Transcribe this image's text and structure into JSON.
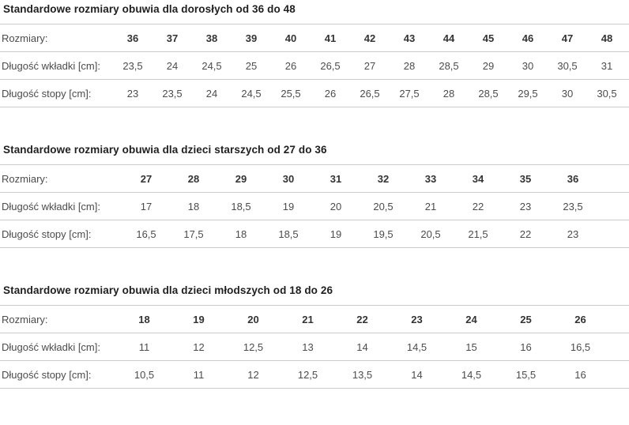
{
  "page": {
    "background": "#ffffff",
    "heading_color": "#1f1f1f",
    "text_color": "#4c4c4c",
    "border_color": "#cccccc"
  },
  "tables": [
    {
      "title": "Standardowe rozmiary obuwia dla dorosłych od 36 do 48",
      "rows": [
        {
          "label": "Rozmiary:",
          "bold": true,
          "values": [
            "36",
            "37",
            "38",
            "39",
            "40",
            "41",
            "42",
            "43",
            "44",
            "45",
            "46",
            "47",
            "48"
          ]
        },
        {
          "label": "Długość wkładki [cm]:",
          "bold": false,
          "values": [
            "23,5",
            "24",
            "24,5",
            "25",
            "26",
            "26,5",
            "27",
            "28",
            "28,5",
            "29",
            "30",
            "30,5",
            "31"
          ]
        },
        {
          "label": "Długość stopy [cm]:",
          "bold": false,
          "values": [
            "23",
            "23,5",
            "24",
            "24,5",
            "25,5",
            "26",
            "26,5",
            "27,5",
            "28",
            "28,5",
            "29,5",
            "30",
            "30,5"
          ]
        }
      ]
    },
    {
      "title": "Standardowe rozmiary obuwia dla dzieci starszych od 27 do 36",
      "rows": [
        {
          "label": "Rozmiary:",
          "bold": true,
          "values": [
            "27",
            "28",
            "29",
            "30",
            "31",
            "32",
            "33",
            "34",
            "35",
            "36"
          ]
        },
        {
          "label": "Długość wkładki [cm]:",
          "bold": false,
          "values": [
            "17",
            "18",
            "18,5",
            "19",
            "20",
            "20,5",
            "21",
            "22",
            "23",
            "23,5"
          ]
        },
        {
          "label": "Długość stopy [cm]:",
          "bold": false,
          "values": [
            "16,5",
            "17,5",
            "18",
            "18,5",
            "19",
            "19,5",
            "20,5",
            "21,5",
            "22",
            "23"
          ]
        }
      ]
    },
    {
      "title": "Standardowe rozmiary obuwia dla dzieci młodszych od 18 do 26",
      "rows": [
        {
          "label": "Rozmiary:",
          "bold": true,
          "values": [
            "18",
            "19",
            "20",
            "21",
            "22",
            "23",
            "24",
            "25",
            "26"
          ]
        },
        {
          "label": "Długość wkładki [cm]:",
          "bold": false,
          "values": [
            "11",
            "12",
            "12,5",
            "13",
            "14",
            "14,5",
            "15",
            "16",
            "16,5"
          ]
        },
        {
          "label": "Długość stopy [cm]:",
          "bold": false,
          "values": [
            "10,5",
            "11",
            "12",
            "12,5",
            "13,5",
            "14",
            "14,5",
            "15,5",
            "16"
          ]
        }
      ]
    }
  ]
}
